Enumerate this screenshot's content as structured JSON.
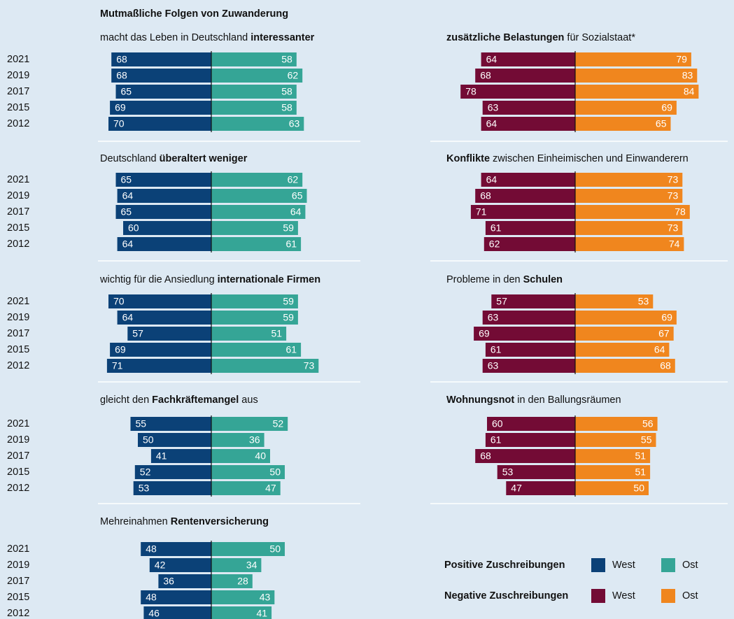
{
  "title": "Mutmaßliche Folgen von Zuwanderung",
  "legend": [
    "Positive Zuschreibungen",
    "Negative Zuschreibungen"
  ],
  "chart_data": [
    {
      "type": "bar",
      "title": [
        {
          "text": "macht das Leben in Deutschland ",
          "bold": false
        },
        {
          "text": "interessanter",
          "bold": true
        }
      ],
      "categories": [
        "2021",
        "2019",
        "2017",
        "2015",
        "2012"
      ],
      "series": [
        {
          "name": "West",
          "color": "#0b4177",
          "values": [
            68,
            68,
            65,
            69,
            70
          ]
        },
        {
          "name": "Ost",
          "color": "#35a596",
          "values": [
            58,
            62,
            58,
            58,
            63
          ]
        }
      ]
    },
    {
      "type": "bar",
      "title": [
        {
          "text": "Deutschland ",
          "bold": false
        },
        {
          "text": "überaltert weniger",
          "bold": true
        }
      ],
      "categories": [
        "2021",
        "2019",
        "2017",
        "2015",
        "2012"
      ],
      "series": [
        {
          "name": "West",
          "color": "#0b4177",
          "values": [
            65,
            64,
            65,
            60,
            64
          ]
        },
        {
          "name": "Ost",
          "color": "#35a596",
          "values": [
            62,
            65,
            64,
            59,
            61
          ]
        }
      ]
    },
    {
      "type": "bar",
      "title": [
        {
          "text": "wichtig für die Ansiedlung ",
          "bold": false
        },
        {
          "text": "internationale Firmen",
          "bold": true
        }
      ],
      "categories": [
        "2021",
        "2019",
        "2017",
        "2015",
        "2012"
      ],
      "series": [
        {
          "name": "West",
          "color": "#0b4177",
          "values": [
            70,
            64,
            57,
            69,
            71
          ]
        },
        {
          "name": "Ost",
          "color": "#35a596",
          "values": [
            59,
            59,
            51,
            61,
            73
          ]
        }
      ]
    },
    {
      "type": "bar",
      "title": [
        {
          "text": "gleicht den ",
          "bold": false
        },
        {
          "text": "Fachkräftemangel",
          "bold": true
        },
        {
          "text": " aus",
          "bold": false
        }
      ],
      "categories": [
        "2021",
        "2019",
        "2017",
        "2015",
        "2012"
      ],
      "series": [
        {
          "name": "West",
          "color": "#0b4177",
          "values": [
            55,
            50,
            41,
            52,
            53
          ]
        },
        {
          "name": "Ost",
          "color": "#35a596",
          "values": [
            52,
            36,
            40,
            50,
            47
          ]
        }
      ]
    },
    {
      "type": "bar",
      "title": [
        {
          "text": "Mehreinahmen ",
          "bold": false
        },
        {
          "text": "Rentenversicherung",
          "bold": true
        }
      ],
      "categories": [
        "2021",
        "2019",
        "2017",
        "2015",
        "2012"
      ],
      "series": [
        {
          "name": "West",
          "color": "#0b4177",
          "values": [
            48,
            42,
            36,
            48,
            46
          ]
        },
        {
          "name": "Ost",
          "color": "#35a596",
          "values": [
            50,
            34,
            28,
            43,
            41
          ]
        }
      ]
    },
    {
      "type": "bar",
      "title": [
        {
          "text": "zusätzliche Belastungen",
          "bold": true
        },
        {
          "text": " für Sozialstaat*",
          "bold": false
        }
      ],
      "series": [
        {
          "name": "West",
          "color": "#730b35",
          "values": [
            64,
            68,
            78,
            63,
            64
          ]
        },
        {
          "name": "Ost",
          "color": "#f0861e",
          "values": [
            79,
            83,
            84,
            69,
            65
          ]
        }
      ]
    },
    {
      "type": "bar",
      "title": [
        {
          "text": "Konflikte",
          "bold": true
        },
        {
          "text": " zwischen Einheimischen und Einwanderern",
          "bold": false
        }
      ],
      "series": [
        {
          "name": "West",
          "color": "#730b35",
          "values": [
            64,
            68,
            71,
            61,
            62
          ]
        },
        {
          "name": "Ost",
          "color": "#f0861e",
          "values": [
            73,
            73,
            78,
            73,
            74
          ]
        }
      ]
    },
    {
      "type": "bar",
      "title": [
        {
          "text": "Probleme in den ",
          "bold": false
        },
        {
          "text": "Schulen",
          "bold": true
        }
      ],
      "series": [
        {
          "name": "West",
          "color": "#730b35",
          "values": [
            57,
            63,
            69,
            61,
            63
          ]
        },
        {
          "name": "Ost",
          "color": "#f0861e",
          "values": [
            53,
            69,
            67,
            64,
            68
          ]
        }
      ]
    },
    {
      "type": "bar",
      "title": [
        {
          "text": "Wohnungsnot",
          "bold": true
        },
        {
          "text": " in den Ballungsräumen",
          "bold": false
        }
      ],
      "series": [
        {
          "name": "West",
          "color": "#730b35",
          "values": [
            60,
            61,
            68,
            53,
            47
          ]
        },
        {
          "name": "Ost",
          "color": "#f0861e",
          "values": [
            56,
            55,
            51,
            51,
            50
          ]
        }
      ]
    }
  ]
}
